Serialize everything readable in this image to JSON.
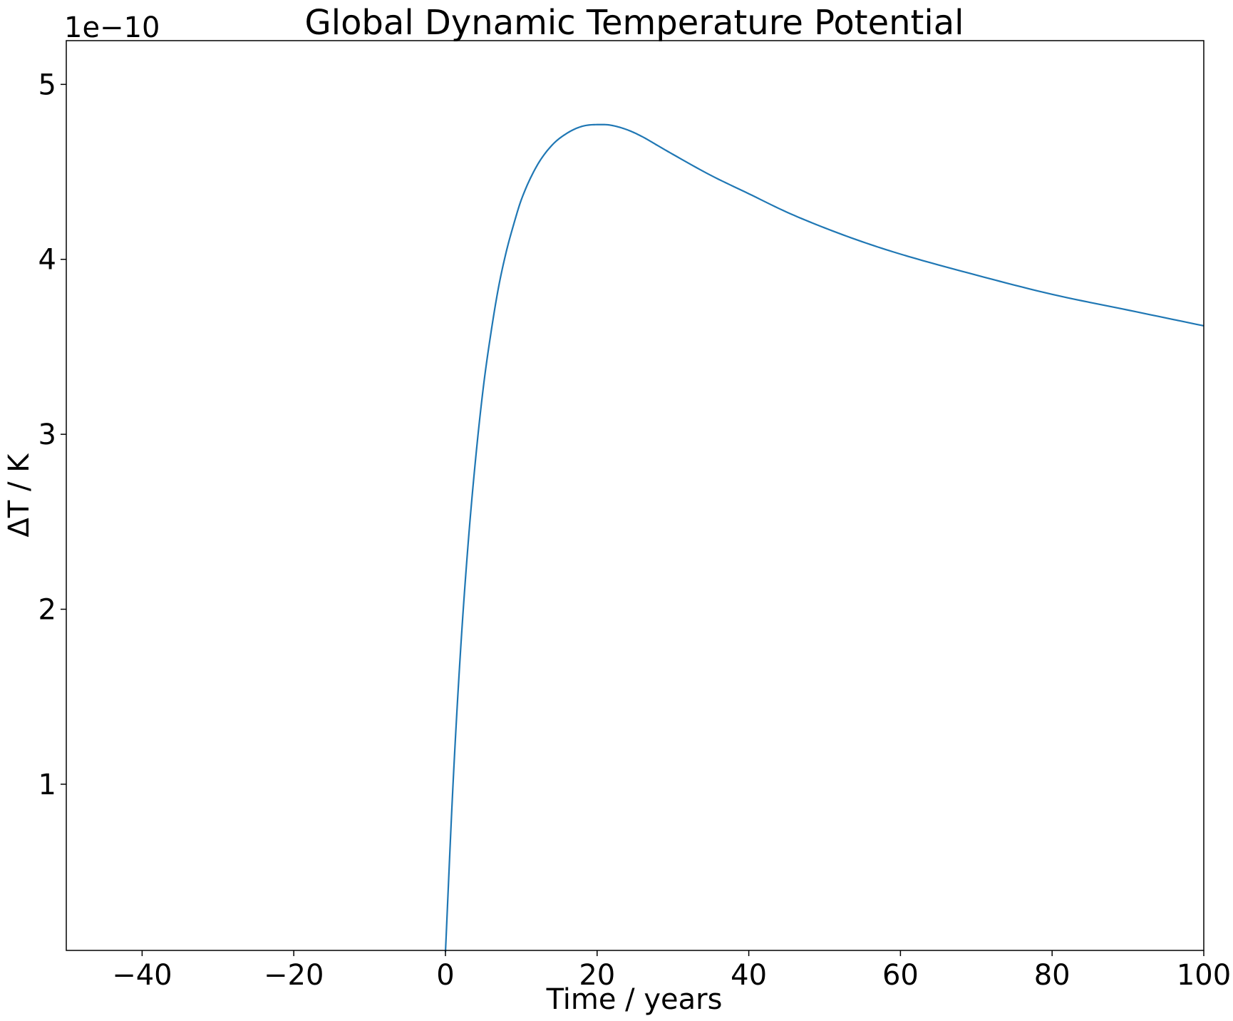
{
  "chart_data": {
    "type": "line",
    "title": "Global Dynamic Temperature Potential",
    "xlabel": "Time / years",
    "ylabel": "ΔT / K",
    "y_offset_label": "1e−10",
    "xlim": [
      -50,
      100
    ],
    "ylim": [
      0.05,
      5.25
    ],
    "x_ticks": [
      -40,
      -20,
      0,
      20,
      40,
      60,
      80,
      100
    ],
    "x_tick_labels": [
      "−40",
      "−20",
      "0",
      "20",
      "40",
      "60",
      "80",
      "100"
    ],
    "y_ticks": [
      1,
      2,
      3,
      4,
      5
    ],
    "y_tick_labels": [
      "1",
      "2",
      "3",
      "4",
      "5"
    ],
    "grid": false,
    "legend": "none",
    "series": [
      {
        "color": "#1f77b4",
        "x": [
          0,
          1,
          2,
          3,
          4,
          5,
          6,
          7,
          8,
          9,
          10,
          12,
          14,
          16,
          18,
          20,
          21,
          22,
          24,
          26,
          28,
          30,
          35,
          40,
          45,
          50,
          55,
          60,
          70,
          80,
          90,
          100
        ],
        "y": [
          0.04,
          1.0,
          1.77,
          2.38,
          2.87,
          3.27,
          3.58,
          3.84,
          4.04,
          4.2,
          4.34,
          4.53,
          4.65,
          4.72,
          4.76,
          4.77,
          4.77,
          4.765,
          4.74,
          4.7,
          4.65,
          4.6,
          4.48,
          4.375,
          4.27,
          4.18,
          4.1,
          4.03,
          3.91,
          3.8,
          3.71,
          3.62
        ]
      }
    ]
  }
}
